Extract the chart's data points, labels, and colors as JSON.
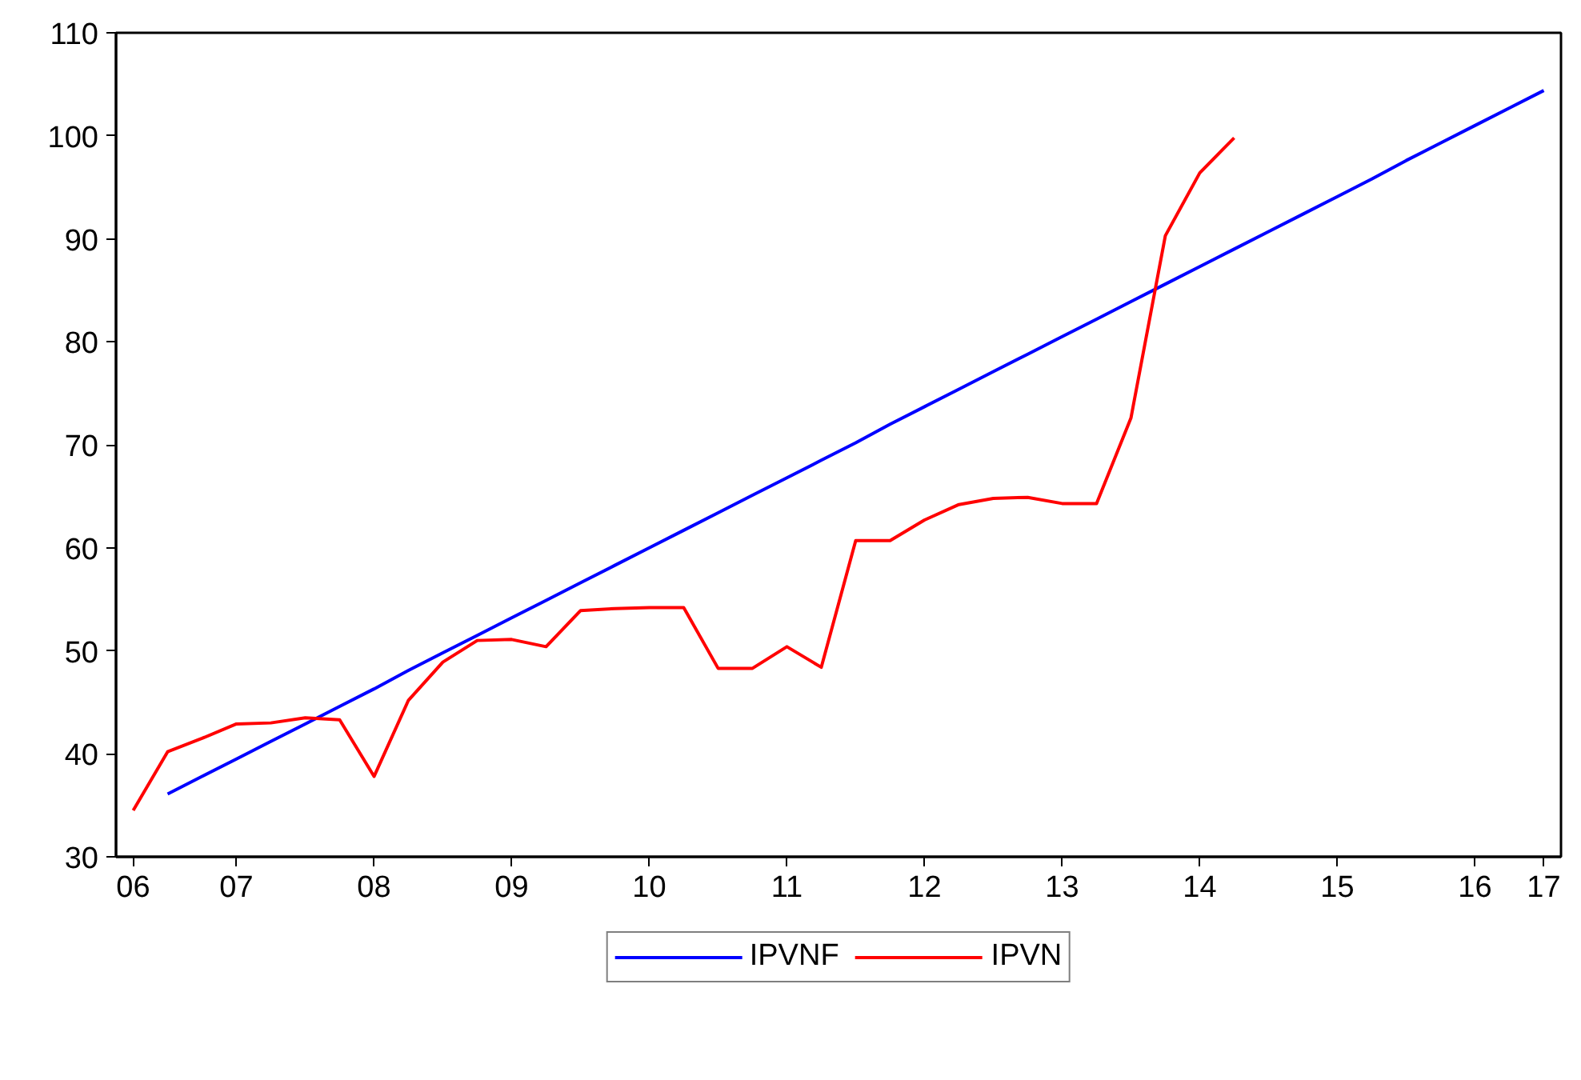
{
  "chart_data": {
    "type": "line",
    "ylim": [
      30,
      110
    ],
    "yticks": [
      30,
      40,
      50,
      60,
      70,
      80,
      90,
      100,
      110
    ],
    "categories": [
      "06",
      null,
      null,
      "07",
      null,
      null,
      null,
      "08",
      null,
      null,
      null,
      "09",
      null,
      null,
      null,
      "10",
      null,
      null,
      null,
      "11",
      null,
      null,
      null,
      "12",
      null,
      null,
      null,
      "13",
      null,
      null,
      null,
      "14",
      null,
      null,
      null,
      "15",
      null,
      null,
      null,
      "16",
      null,
      "17"
    ],
    "grid": false,
    "legend": "bottom",
    "line_style": "solid",
    "marker": "none",
    "series": [
      {
        "name": "IPVNF",
        "color": "#0000ff",
        "values": [
          null,
          36.1,
          37.8,
          39.5,
          41.2,
          42.9,
          44.6,
          46.3,
          48.1,
          49.8,
          51.5,
          53.2,
          54.9,
          56.6,
          58.3,
          60.0,
          61.7,
          63.4,
          65.1,
          66.8,
          68.5,
          70.2,
          72.0,
          73.7,
          75.4,
          77.1,
          78.8,
          80.5,
          82.2,
          83.9,
          85.6,
          87.3,
          89.0,
          90.7,
          92.4,
          94.1,
          95.8,
          97.6,
          99.3,
          101.0,
          102.7,
          104.4
        ]
      },
      {
        "name": "IPVN",
        "color": "#ff0000",
        "values": [
          34.5,
          40.2,
          41.5,
          42.9,
          43.0,
          43.5,
          43.3,
          37.8,
          45.2,
          48.9,
          51.0,
          51.1,
          50.4,
          53.9,
          54.1,
          54.2,
          54.2,
          48.3,
          48.3,
          50.4,
          48.4,
          60.7,
          60.7,
          62.7,
          64.2,
          64.8,
          64.9,
          64.3,
          64.3,
          72.6,
          90.3,
          96.4,
          99.8,
          null,
          null,
          null,
          null,
          null,
          null,
          null,
          null,
          null
        ]
      }
    ]
  }
}
